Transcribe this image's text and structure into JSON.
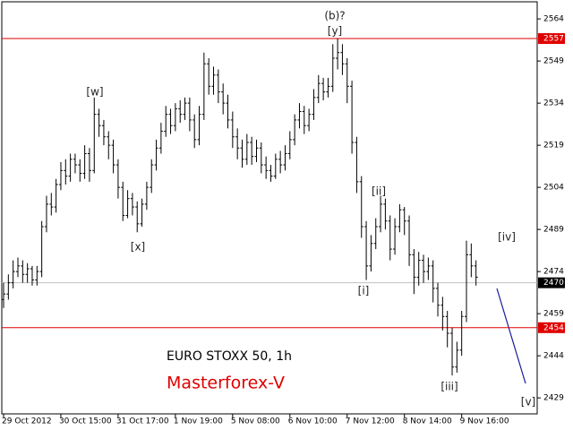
{
  "chart_data": {
    "type": "ohlc",
    "title": "EURO STOXX 50, 1h",
    "subtitle": "Masterforex-V",
    "color": "#000000",
    "x": [
      "29 Oct 2012",
      null,
      null,
      null,
      null,
      null,
      null,
      null,
      null,
      null,
      null,
      null,
      "30 Oct 15:00",
      null,
      null,
      null,
      null,
      null,
      null,
      null,
      null,
      null,
      null,
      null,
      "31 Oct 17:00",
      null,
      null,
      null,
      null,
      null,
      null,
      null,
      null,
      null,
      null,
      null,
      "1 Nov 19:00",
      null,
      null,
      null,
      null,
      null,
      null,
      null,
      null,
      null,
      null,
      null,
      "5 Nov 08:00",
      null,
      null,
      null,
      null,
      null,
      null,
      null,
      null,
      null,
      null,
      null,
      "6 Nov 10:00",
      null,
      null,
      null,
      null,
      null,
      null,
      null,
      null,
      null,
      null,
      null,
      "7 Nov 12:00",
      null,
      null,
      null,
      null,
      null,
      null,
      null,
      null,
      null,
      null,
      null,
      "8 Nov 14:00",
      null,
      null,
      null,
      null,
      null,
      null,
      null,
      null,
      null,
      null,
      null,
      "9 Nov 16:00",
      null,
      null,
      null
    ],
    "open": [
      2464,
      2466,
      2470,
      2474,
      2476,
      2473,
      2475,
      2471,
      2474,
      2490,
      2498,
      2497,
      2505,
      2510,
      2508,
      2514,
      2512,
      2509,
      2516,
      2510,
      2530,
      2526,
      2522,
      2519,
      2512,
      2504,
      2494,
      2500,
      2497,
      2491,
      2498,
      2504,
      2512,
      2518,
      2524,
      2530,
      2526,
      2532,
      2530,
      2534,
      2528,
      2521,
      2530,
      2548,
      2540,
      2544,
      2538,
      2534,
      2528,
      2522,
      2518,
      2514,
      2520,
      2515,
      2518,
      2512,
      2510,
      2508,
      2514,
      2512,
      2516,
      2521,
      2528,
      2531,
      2526,
      2530,
      2536,
      2541,
      2538,
      2540,
      2550,
      2552,
      2548,
      2540,
      2520,
      2506,
      2490,
      2476,
      2484,
      2490,
      2498,
      2492,
      2482,
      2490,
      2496,
      2492,
      2480,
      2472,
      2478,
      2474,
      2476,
      2468,
      2462,
      2458,
      2452,
      2440,
      2446,
      2458,
      2480,
      2476
    ],
    "high": [
      2470,
      2473,
      2478,
      2479,
      2478,
      2477,
      2476,
      2476,
      2492,
      2501,
      2502,
      2507,
      2513,
      2514,
      2516,
      2516,
      2514,
      2519,
      2518,
      2536,
      2532,
      2528,
      2524,
      2521,
      2514,
      2506,
      2503,
      2502,
      2499,
      2500,
      2506,
      2514,
      2521,
      2527,
      2533,
      2532,
      2534,
      2535,
      2536,
      2536,
      2530,
      2533,
      2552,
      2550,
      2547,
      2546,
      2541,
      2537,
      2531,
      2525,
      2521,
      2523,
      2522,
      2521,
      2520,
      2515,
      2512,
      2516,
      2517,
      2519,
      2524,
      2530,
      2534,
      2533,
      2532,
      2539,
      2544,
      2543,
      2543,
      2555,
      2557,
      2555,
      2550,
      2542,
      2522,
      2508,
      2492,
      2487,
      2493,
      2501,
      2500,
      2494,
      2493,
      2498,
      2497,
      2494,
      2482,
      2481,
      2480,
      2479,
      2478,
      2470,
      2465,
      2460,
      2454,
      2449,
      2460,
      2485,
      2484,
      2478
    ],
    "low": [
      2461,
      2464,
      2468,
      2472,
      2470,
      2470,
      2469,
      2469,
      2472,
      2488,
      2494,
      2495,
      2503,
      2505,
      2506,
      2509,
      2506,
      2507,
      2506,
      2509,
      2522,
      2519,
      2514,
      2509,
      2500,
      2492,
      2493,
      2494,
      2488,
      2490,
      2496,
      2502,
      2510,
      2516,
      2522,
      2523,
      2524,
      2527,
      2528,
      2524,
      2518,
      2519,
      2528,
      2537,
      2537,
      2534,
      2530,
      2525,
      2518,
      2514,
      2511,
      2512,
      2512,
      2513,
      2509,
      2507,
      2506,
      2507,
      2509,
      2510,
      2514,
      2519,
      2525,
      2523,
      2524,
      2528,
      2534,
      2535,
      2536,
      2538,
      2546,
      2544,
      2534,
      2516,
      2502,
      2486,
      2471,
      2474,
      2482,
      2488,
      2489,
      2478,
      2480,
      2488,
      2487,
      2476,
      2466,
      2469,
      2470,
      2471,
      2463,
      2458,
      2453,
      2447,
      2437,
      2438,
      2444,
      2456,
      2472,
      2469
    ],
    "close": [
      2466,
      2470,
      2474,
      2476,
      2473,
      2475,
      2471,
      2474,
      2490,
      2498,
      2497,
      2505,
      2510,
      2508,
      2514,
      2512,
      2509,
      2516,
      2510,
      2530,
      2526,
      2522,
      2519,
      2512,
      2504,
      2494,
      2500,
      2497,
      2491,
      2498,
      2504,
      2512,
      2518,
      2524,
      2530,
      2526,
      2532,
      2530,
      2534,
      2528,
      2521,
      2530,
      2548,
      2540,
      2544,
      2538,
      2534,
      2528,
      2522,
      2518,
      2514,
      2520,
      2515,
      2518,
      2512,
      2510,
      2508,
      2514,
      2512,
      2516,
      2521,
      2528,
      2531,
      2526,
      2530,
      2536,
      2541,
      2538,
      2540,
      2550,
      2552,
      2548,
      2540,
      2520,
      2506,
      2490,
      2476,
      2484,
      2490,
      2498,
      2492,
      2482,
      2490,
      2496,
      2492,
      2480,
      2472,
      2478,
      2474,
      2476,
      2468,
      2462,
      2458,
      2452,
      2440,
      2446,
      2458,
      2480,
      2476,
      2472
    ],
    "ylim": [
      2423.3,
      2570.1
    ],
    "yticks": [
      2429,
      2444,
      2459,
      2474,
      2489,
      2504,
      2519,
      2534,
      2549,
      2564
    ],
    "levels": [
      {
        "value": 2557,
        "color": "#e00000",
        "box": "#e00000"
      },
      {
        "value": 2454,
        "color": "#e00000",
        "box": "#e00000"
      },
      {
        "value": 2470,
        "color": "#c0c0c0",
        "box": "#000000"
      }
    ],
    "annotations": [
      "(b)?",
      "[y]",
      "[w]",
      "[x]",
      "[ii]",
      "[i]",
      "[iv]",
      "[iii]",
      "[v]"
    ]
  }
}
